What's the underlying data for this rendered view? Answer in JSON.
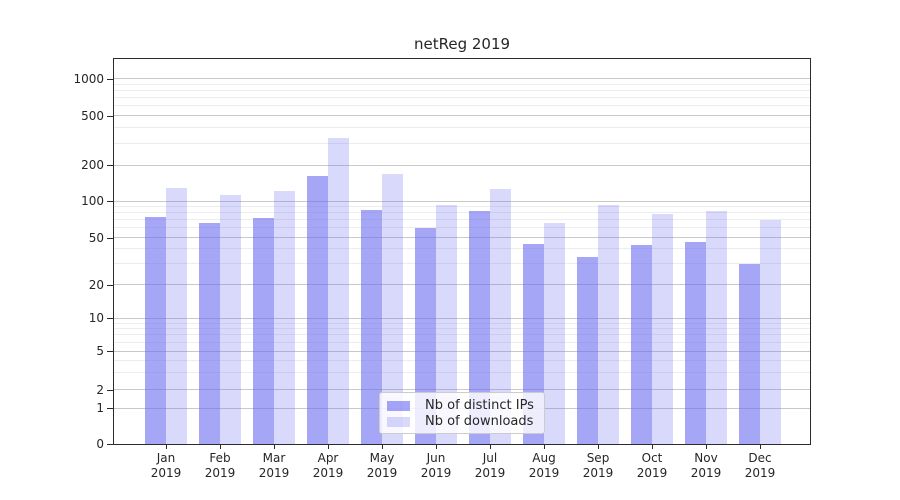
{
  "chart_data": {
    "type": "bar",
    "title": "netReg 2019",
    "categories": [
      "Jan 2019",
      "Feb 2019",
      "Mar 2019",
      "Apr 2019",
      "May 2019",
      "Jun 2019",
      "Jul 2019",
      "Aug 2019",
      "Sep 2019",
      "Oct 2019",
      "Nov 2019",
      "Dec 2019"
    ],
    "x_tick_months": [
      "Jan",
      "Feb",
      "Mar",
      "Apr",
      "May",
      "Jun",
      "Jul",
      "Aug",
      "Sep",
      "Oct",
      "Nov",
      "Dec"
    ],
    "x_tick_year": "2019",
    "series": [
      {
        "name": "Nb of distinct IPs",
        "color": "rgba(107,107,240,0.6)",
        "values": [
          74,
          66,
          72,
          162,
          85,
          60,
          83,
          44,
          34,
          43,
          46,
          30
        ]
      },
      {
        "name": "Nb of downloads",
        "color": "rgba(107,107,240,0.26)",
        "values": [
          128,
          113,
          122,
          330,
          167,
          93,
          126,
          66,
          92,
          78,
          83,
          70
        ]
      }
    ],
    "y_ticks": [
      0,
      1,
      2,
      5,
      10,
      20,
      50,
      100,
      200,
      500,
      1000
    ],
    "y_tick_labels": [
      "0",
      "1",
      "2",
      "5",
      "10",
      "20",
      "50",
      "100",
      "200",
      "500",
      "1000"
    ],
    "y_scale": "symlog",
    "ylim": [
      0,
      1200
    ],
    "grid": true,
    "legend_position": "lower center"
  },
  "colors": {
    "bar_base": "#6b6bf0",
    "grid_major": "#c9c9c9",
    "grid_minor": "#ededed",
    "spine": "#2b2b2b",
    "text": "#262626",
    "legend_border": "#cccccc"
  }
}
